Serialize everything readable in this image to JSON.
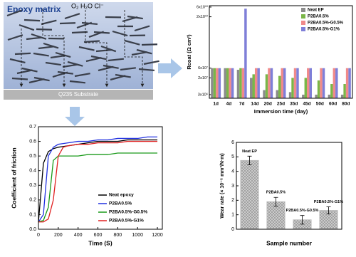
{
  "diagram": {
    "title": "Epoxy matrix",
    "species": "O₂ H₂O Cl⁻",
    "substrate": "Q235 Substrate"
  },
  "chart_data": [
    {
      "type": "bar",
      "log_scale": true,
      "x_label": "Immersion time (day)",
      "y_label": "Rcoat (Ω cm²)",
      "categories": [
        "1d",
        "4d",
        "7d",
        "14d",
        "20d",
        "25d",
        "35d",
        "45d",
        "50d",
        "60d",
        "80d"
      ],
      "series": [
        {
          "name": "Neat EP",
          "color": "#8c8c8c",
          "values": [
            60000000,
            60000000,
            50000000,
            20000000,
            5000000,
            5000000,
            4000000,
            3000000,
            3000000,
            3000000,
            3000000
          ]
        },
        {
          "name": "P2BA0.5%",
          "color": "#7ab648",
          "values": [
            60000000,
            60000000,
            60000000,
            30000000,
            30000000,
            25000000,
            20000000,
            20000000,
            15000000,
            10000000,
            10000000
          ]
        },
        {
          "name": "P2BA0.5%-G0.5%",
          "color": "#f08a8a",
          "values": [
            60000000,
            60000000,
            60000000,
            60000000,
            60000000,
            60000000,
            60000000,
            60000000,
            60000000,
            60000000,
            60000000
          ]
        },
        {
          "name": "P2BA0.5%-G1%",
          "color": "#7f7fd8",
          "values": [
            60000000,
            60000000,
            50000000000,
            60000000,
            60000000,
            60000000,
            60000000,
            60000000,
            60000000,
            60000000,
            60000000
          ]
        }
      ],
      "ylim": [
        2000000,
        70000000000
      ],
      "yticks": [
        {
          "value": 3000000,
          "label": "3x10⁶"
        },
        {
          "value": 20000000,
          "label": "2x10⁷"
        },
        {
          "value": 60000000,
          "label": "6x10⁷"
        },
        {
          "value": 20000000000,
          "label": "2x10¹⁰"
        },
        {
          "value": 60000000000,
          "label": "6x10¹⁰"
        }
      ],
      "legend": "upper-right"
    },
    {
      "type": "line",
      "x_label": "Time (S)",
      "y_label": "Coefficient of friction",
      "x": [
        0,
        50,
        100,
        150,
        200,
        250,
        300,
        400,
        500,
        600,
        700,
        800,
        900,
        1000,
        1100,
        1200
      ],
      "series": [
        {
          "name": "Neat epoxy",
          "color": "#000000",
          "values": [
            0.05,
            0.45,
            0.53,
            0.55,
            0.56,
            0.565,
            0.57,
            0.58,
            0.59,
            0.6,
            0.6,
            0.6,
            0.61,
            0.61,
            0.61,
            0.61
          ]
        },
        {
          "name": "P2BA0.5%",
          "color": "#2030e0",
          "values": [
            0.05,
            0.1,
            0.5,
            0.56,
            0.58,
            0.585,
            0.59,
            0.6,
            0.6,
            0.61,
            0.61,
            0.62,
            0.62,
            0.62,
            0.63,
            0.63
          ]
        },
        {
          "name": "P2BA0.5%-G0.5%",
          "color": "#1a9a1a",
          "values": [
            0.05,
            0.06,
            0.15,
            0.47,
            0.5,
            0.5,
            0.5,
            0.5,
            0.51,
            0.51,
            0.51,
            0.52,
            0.52,
            0.52,
            0.52,
            0.52
          ]
        },
        {
          "name": "P2BA0.5%-G1%",
          "color": "#e02020",
          "values": [
            0.05,
            0.05,
            0.07,
            0.2,
            0.5,
            0.56,
            0.57,
            0.58,
            0.58,
            0.59,
            0.59,
            0.59,
            0.6,
            0.6,
            0.6,
            0.6
          ]
        }
      ],
      "xlim": [
        0,
        1250
      ],
      "xticks": [
        0,
        200,
        400,
        600,
        800,
        1000,
        1200
      ],
      "ylim": [
        0,
        0.7
      ],
      "yticks": [
        {
          "value": 0,
          "label": "0.0"
        },
        0.1,
        0.2,
        0.3,
        0.4,
        0.5,
        0.6,
        0.7
      ],
      "legend": "lower-right"
    },
    {
      "type": "bar",
      "x_label": "Sample number",
      "y_label": "Wear rate (× 10⁻⁵ mm³/N·m)",
      "categories": [
        "Neat EP",
        "P2BA0.5%",
        "P2BA0.5%-G0.5%",
        "P2BA0.5%-G1%"
      ],
      "values": [
        4.75,
        1.9,
        0.65,
        1.3
      ],
      "errors": [
        0.3,
        0.3,
        0.3,
        0.25
      ],
      "color": "#bdbdbd",
      "ylim": [
        0,
        6
      ],
      "yticks": [
        0,
        1,
        2,
        3,
        4,
        5,
        6
      ]
    }
  ]
}
